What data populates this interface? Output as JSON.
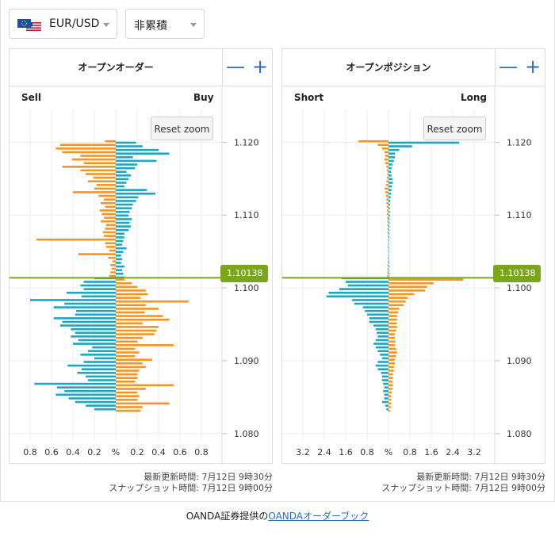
{
  "header": {
    "pair_label": "EUR/USD",
    "mode_label": "非累積"
  },
  "colors": {
    "blue": "#1aa7c1",
    "orange": "#f7941d",
    "price": "#7aa51c",
    "accent": "#2d6fb5",
    "grid": "#ececec"
  },
  "orders": {
    "title": "オープンオーダー",
    "left_label": "Sell",
    "right_label": "Buy",
    "reset_label": "Reset zoom",
    "minus_label": "—",
    "plus_label": "+",
    "price_label": "1.10138",
    "x_ticks": [
      "0.8",
      "0.6",
      "0.4",
      "0.2",
      "%",
      "0.2",
      "0.4",
      "0.6",
      "0.8"
    ],
    "y_ticks": [
      "1.120",
      "1.110",
      "1.100",
      "1.090",
      "1.080"
    ],
    "updated_label": "最新更新時間: 7月12日 9時30分",
    "snapshot_label": "スナップショット時間: 7月12日 9時00分",
    "chart_data": {
      "type": "bar",
      "orientation": "horizontal",
      "title": "オープンオーダー",
      "x_range": [
        -0.8,
        0.8
      ],
      "y_range": [
        1.079,
        1.1245
      ],
      "current_price": 1.10138,
      "rows_above_price": [
        [
          0.06,
          0.08
        ],
        [
          0.05,
          0.07
        ],
        [
          0.04,
          0.06
        ],
        [
          0.05,
          0.08
        ],
        [
          0.03,
          0.05
        ],
        [
          0.07,
          0.06
        ],
        [
          0.35,
          0.05
        ],
        [
          0.06,
          0.07
        ],
        [
          0.09,
          0.1
        ],
        [
          0.1,
          0.06
        ],
        [
          0.74,
          0.07
        ],
        [
          0.11,
          0.08
        ],
        [
          0.12,
          0.08
        ],
        [
          0.1,
          0.12
        ],
        [
          0.09,
          0.14
        ],
        [
          0.14,
          0.13
        ],
        [
          0.11,
          0.15
        ],
        [
          0.13,
          0.12
        ],
        [
          0.15,
          0.13
        ],
        [
          0.1,
          0.15
        ],
        [
          0.14,
          0.16
        ],
        [
          0.11,
          0.19
        ],
        [
          0.16,
          0.21
        ],
        [
          0.4,
          0.37
        ],
        [
          0.2,
          0.29
        ],
        [
          0.18,
          0.08
        ],
        [
          0.26,
          0.1
        ],
        [
          0.21,
          0.12
        ],
        [
          0.28,
          0.14
        ],
        [
          0.33,
          0.1
        ],
        [
          0.5,
          0.18
        ],
        [
          0.3,
          0.2
        ],
        [
          0.41,
          0.38
        ],
        [
          0.33,
          0.16
        ],
        [
          0.5,
          0.5
        ],
        [
          0.56,
          0.4
        ],
        [
          0.52,
          0.25
        ],
        [
          0.1,
          0.19
        ]
      ],
      "rows_below_price": [
        [
          0.2,
          0.08
        ],
        [
          0.3,
          0.15
        ],
        [
          0.33,
          0.2
        ],
        [
          0.3,
          0.28
        ],
        [
          0.46,
          0.3
        ],
        [
          0.32,
          0.23
        ],
        [
          0.8,
          0.68
        ],
        [
          0.48,
          0.28
        ],
        [
          0.58,
          0.4
        ],
        [
          0.37,
          0.27
        ],
        [
          0.38,
          0.44
        ],
        [
          0.58,
          0.5
        ],
        [
          0.5,
          0.25
        ],
        [
          0.52,
          0.4
        ],
        [
          0.42,
          0.38
        ],
        [
          0.38,
          0.36
        ],
        [
          0.42,
          0.25
        ],
        [
          0.35,
          0.2
        ],
        [
          0.4,
          0.54
        ],
        [
          0.22,
          0.18
        ],
        [
          0.26,
          0.22
        ],
        [
          0.33,
          0.18
        ],
        [
          0.2,
          0.34
        ],
        [
          0.3,
          0.25
        ],
        [
          0.45,
          0.28
        ],
        [
          0.32,
          0.22
        ],
        [
          0.36,
          0.2
        ],
        [
          0.28,
          0.2
        ],
        [
          0.26,
          0.18
        ],
        [
          0.76,
          0.54
        ],
        [
          0.55,
          0.28
        ],
        [
          0.48,
          0.2
        ],
        [
          0.56,
          0.22
        ],
        [
          0.44,
          0.2
        ],
        [
          0.38,
          0.5
        ],
        [
          0.28,
          0.25
        ],
        [
          0.2,
          0.23
        ]
      ]
    }
  },
  "positions": {
    "title": "オープンポジション",
    "left_label": "Short",
    "right_label": "Long",
    "reset_label": "Reset zoom",
    "minus_label": "—",
    "plus_label": "+",
    "price_label": "1.10138",
    "x_ticks": [
      "3.2",
      "2.4",
      "1.6",
      "0.8",
      "%",
      "0.8",
      "1.6",
      "2.4",
      "3.2"
    ],
    "y_ticks": [
      "1.120",
      "1.110",
      "1.100",
      "1.090",
      "1.080"
    ],
    "updated_label": "最新更新時間: 7月12日 9時30分",
    "snapshot_label": "スナップショット時間: 7月12日 9時00分",
    "chart_data": {
      "type": "bar",
      "orientation": "horizontal",
      "title": "オープンポジション",
      "x_range": [
        -4.0,
        4.0
      ],
      "y_range": [
        1.079,
        1.1245
      ],
      "current_price": 1.10138,
      "rows_above_price": [
        [
          0.06,
          0.04
        ],
        [
          0.06,
          0.04
        ],
        [
          0.05,
          0.03
        ],
        [
          0.05,
          0.03
        ],
        [
          0.04,
          0.03
        ],
        [
          0.04,
          0.02
        ],
        [
          0.03,
          0.02
        ],
        [
          0.03,
          0.02
        ],
        [
          0.04,
          0.02
        ],
        [
          0.03,
          0.02
        ],
        [
          0.03,
          0.02
        ],
        [
          0.04,
          0.03
        ],
        [
          0.05,
          0.03
        ],
        [
          0.05,
          0.04
        ],
        [
          0.05,
          0.04
        ],
        [
          0.06,
          0.05
        ],
        [
          0.06,
          0.05
        ],
        [
          0.07,
          0.06
        ],
        [
          0.07,
          0.06
        ],
        [
          0.08,
          0.06
        ],
        [
          0.1,
          0.08
        ],
        [
          0.1,
          0.08
        ],
        [
          0.12,
          0.1
        ],
        [
          0.15,
          0.12
        ],
        [
          0.18,
          0.14
        ],
        [
          0.12,
          0.16
        ],
        [
          0.1,
          0.2
        ],
        [
          0.08,
          0.18
        ],
        [
          0.06,
          0.14
        ],
        [
          0.08,
          0.12
        ],
        [
          0.1,
          0.14
        ],
        [
          0.15,
          0.18
        ],
        [
          0.2,
          0.25
        ],
        [
          0.15,
          0.3
        ],
        [
          0.2,
          0.3
        ],
        [
          0.3,
          0.5
        ],
        [
          0.5,
          1.1
        ],
        [
          1.4,
          3.3
        ]
      ],
      "rows_below_price": [
        [
          2.2,
          3.5
        ],
        [
          2.0,
          2.1
        ],
        [
          1.9,
          1.8
        ],
        [
          2.3,
          1.7
        ],
        [
          2.8,
          1.2
        ],
        [
          2.9,
          0.9
        ],
        [
          1.7,
          0.8
        ],
        [
          1.6,
          0.7
        ],
        [
          1.2,
          0.5
        ],
        [
          1.1,
          0.45
        ],
        [
          1.0,
          0.4
        ],
        [
          0.9,
          0.4
        ],
        [
          0.9,
          0.38
        ],
        [
          0.7,
          0.4
        ],
        [
          0.6,
          0.35
        ],
        [
          0.55,
          0.3
        ],
        [
          0.5,
          0.3
        ],
        [
          0.6,
          0.32
        ],
        [
          0.7,
          0.3
        ],
        [
          0.6,
          0.35
        ],
        [
          0.5,
          0.4
        ],
        [
          0.4,
          0.35
        ],
        [
          0.3,
          0.3
        ],
        [
          0.5,
          0.3
        ],
        [
          0.6,
          0.25
        ],
        [
          0.5,
          0.25
        ],
        [
          0.35,
          0.2
        ],
        [
          0.3,
          0.2
        ],
        [
          0.3,
          0.18
        ],
        [
          0.25,
          0.2
        ],
        [
          0.2,
          0.18
        ],
        [
          0.25,
          0.15
        ],
        [
          0.2,
          0.12
        ],
        [
          0.2,
          0.12
        ],
        [
          0.3,
          0.12
        ],
        [
          0.15,
          0.1
        ],
        [
          0.1,
          0.08
        ]
      ]
    }
  },
  "footer": {
    "credit_prefix": "OANDA証券提供の",
    "credit_link": "OANDAオーダーブック"
  }
}
